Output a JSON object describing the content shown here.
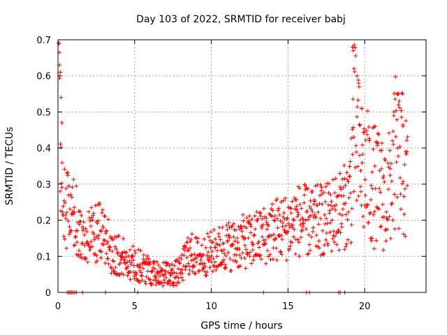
{
  "chart_data": {
    "type": "scatter",
    "title": "Day 103 of 2022, SRMTID for receiver babj",
    "xlabel": "GPS time / hours",
    "ylabel": "SRMTID / TECUs",
    "xlim": [
      0,
      24
    ],
    "ylim": [
      0,
      0.7
    ],
    "xticks": [
      0,
      5,
      10,
      15,
      20
    ],
    "xtick_labels": [
      "0",
      "5",
      "10",
      "15",
      "20"
    ],
    "yticks": [
      0,
      0.1,
      0.2,
      0.3,
      0.4,
      0.5,
      0.6,
      0.7
    ],
    "ytick_labels": [
      "0",
      "0.1",
      "0.2",
      "0.3",
      "0.4",
      "0.5",
      "0.6",
      "0.7"
    ],
    "grid": true,
    "marker": "+",
    "color": "#ff0000",
    "trend": [
      [
        0.05,
        0.55
      ],
      [
        0.2,
        0.28
      ],
      [
        0.4,
        0.24
      ],
      [
        0.8,
        0.22
      ],
      [
        1.2,
        0.2
      ],
      [
        1.6,
        0.15
      ],
      [
        2.0,
        0.15
      ],
      [
        2.5,
        0.16
      ],
      [
        3.0,
        0.17
      ],
      [
        3.5,
        0.11
      ],
      [
        4.0,
        0.1
      ],
      [
        4.5,
        0.09
      ],
      [
        5.0,
        0.08
      ],
      [
        5.5,
        0.07
      ],
      [
        6.0,
        0.06
      ],
      [
        6.5,
        0.055
      ],
      [
        7.0,
        0.05
      ],
      [
        7.5,
        0.05
      ],
      [
        8.0,
        0.06
      ],
      [
        8.5,
        0.11
      ],
      [
        9.0,
        0.1
      ],
      [
        9.5,
        0.1
      ],
      [
        10.0,
        0.11
      ],
      [
        10.5,
        0.12
      ],
      [
        11.0,
        0.13
      ],
      [
        11.5,
        0.13
      ],
      [
        12.0,
        0.14
      ],
      [
        12.5,
        0.14
      ],
      [
        13.0,
        0.15
      ],
      [
        13.5,
        0.16
      ],
      [
        14.0,
        0.17
      ],
      [
        14.5,
        0.18
      ],
      [
        15.0,
        0.18
      ],
      [
        15.5,
        0.2
      ],
      [
        16.0,
        0.2
      ],
      [
        16.5,
        0.19
      ],
      [
        17.0,
        0.2
      ],
      [
        17.5,
        0.2
      ],
      [
        18.0,
        0.22
      ],
      [
        18.5,
        0.23
      ],
      [
        19.0,
        0.25
      ],
      [
        19.3,
        0.45
      ],
      [
        19.6,
        0.38
      ],
      [
        20.0,
        0.33
      ],
      [
        20.5,
        0.3
      ],
      [
        21.0,
        0.28
      ],
      [
        21.5,
        0.26
      ],
      [
        22.0,
        0.38
      ],
      [
        22.5,
        0.35
      ],
      [
        22.8,
        0.3
      ]
    ],
    "spikes": [
      [
        0.1,
        0.63
      ],
      [
        0.15,
        0.61
      ],
      [
        0.1,
        0.6
      ],
      [
        0.2,
        0.54
      ],
      [
        0.25,
        0.47
      ],
      [
        19.2,
        0.68
      ],
      [
        19.25,
        0.67
      ],
      [
        19.3,
        0.62
      ],
      [
        19.5,
        0.6
      ],
      [
        19.6,
        0.58
      ],
      [
        22.1,
        0.55
      ],
      [
        22.2,
        0.52
      ],
      [
        21.9,
        0.5
      ],
      [
        19.8,
        0.51
      ],
      [
        22.5,
        0.46
      ]
    ],
    "zero_points_x": [
      0.6,
      0.7,
      0.8,
      0.9,
      1.0,
      1.1,
      1.2,
      1.6,
      3.1,
      5.2,
      13.4,
      16.2,
      16.4,
      18.3,
      18.4,
      18.7
    ]
  }
}
